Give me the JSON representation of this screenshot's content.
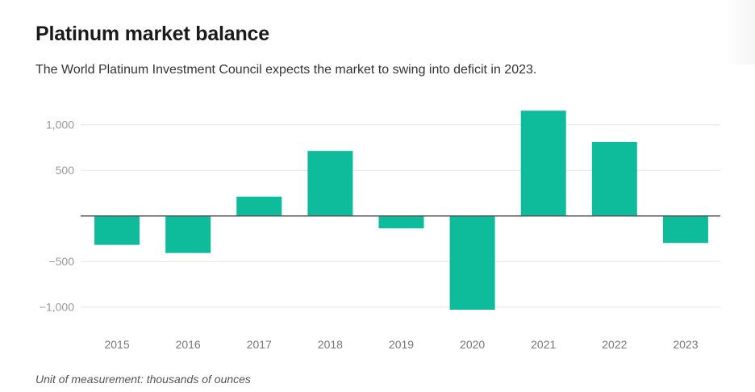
{
  "header": {
    "title": "Platinum market balance",
    "subtitle": "The World Platinum Investment Council expects the market to swing into deficit in 2023."
  },
  "footer": {
    "note": "Unit of measurement: thousands of ounces"
  },
  "colors": {
    "bar": "#0ebc9b",
    "zero_line": "#555555",
    "grid": "#e6e6e6"
  },
  "chart_data": {
    "type": "bar",
    "title": "Platinum market balance",
    "subtitle": "The World Platinum Investment Council expects the market to swing into deficit in 2023.",
    "xlabel": "",
    "ylabel": "",
    "unit": "thousands of ounces",
    "categories": [
      "2015",
      "2016",
      "2017",
      "2018",
      "2019",
      "2020",
      "2021",
      "2022",
      "2023"
    ],
    "values": [
      -318,
      -407,
      212,
      713,
      -136,
      -1029,
      1155,
      812,
      -297
    ],
    "ylim": [
      -1100,
      1200
    ],
    "yticks": [
      1000,
      500,
      -500,
      -1000
    ],
    "ytick_labels": [
      "1,000",
      "500",
      "−500",
      "−1,000"
    ],
    "grid": true,
    "legend": "none"
  }
}
